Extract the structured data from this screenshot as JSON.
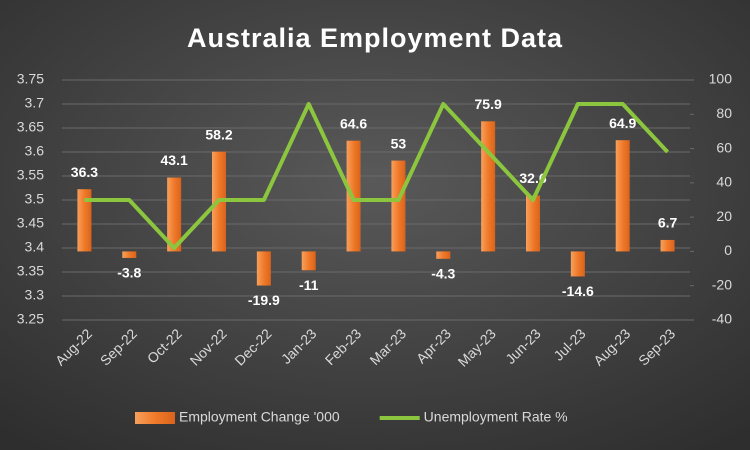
{
  "chart_data": {
    "type": "combo",
    "title": "Australia Employment Data",
    "categories": [
      "Aug-22",
      "Sep-22",
      "Oct-22",
      "Nov-22",
      "Dec-22",
      "Jan-23",
      "Feb-23",
      "Mar-23",
      "Apr-23",
      "May-23",
      "Jun-23",
      "Jul-23",
      "Aug-23",
      "Sep-23"
    ],
    "series": [
      {
        "name": "Employment Change '000",
        "type": "bar",
        "axis": "y2",
        "color": "#f07a2a",
        "data_labels": true,
        "values": [
          36.3,
          -3.8,
          43.1,
          58.2,
          -19.9,
          -11,
          64.6,
          53,
          -4.3,
          75.9,
          32.6,
          -14.6,
          64.9,
          6.7
        ]
      },
      {
        "name": "Unemployment Rate %",
        "type": "line",
        "color": "#8cc63f",
        "values": [
          3.5,
          3.5,
          3.4,
          3.5,
          3.5,
          3.7,
          3.5,
          3.5,
          3.7,
          3.6,
          3.5,
          3.7,
          3.7,
          3.6
        ]
      }
    ],
    "ylim": [
      3.25,
      3.75
    ],
    "yticks": [
      3.25,
      3.3,
      3.35,
      3.4,
      3.45,
      3.5,
      3.55,
      3.6,
      3.65,
      3.7,
      3.75
    ],
    "y2lim": [
      -40,
      100
    ],
    "y2ticks": [
      -40,
      -20,
      0,
      20,
      40,
      60,
      80,
      100
    ],
    "grid": true,
    "legend": "bottom"
  }
}
